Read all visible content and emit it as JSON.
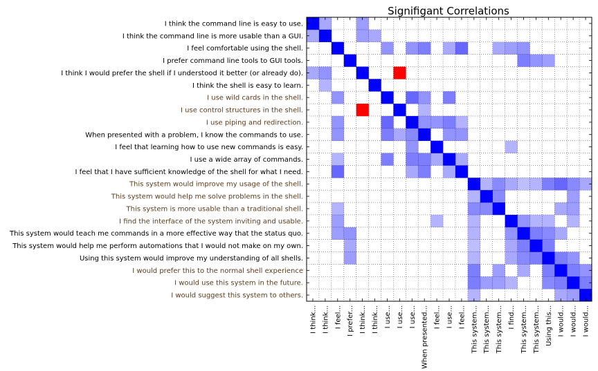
{
  "chart_data": {
    "type": "heatmap",
    "title": "Signifigant Correlations",
    "colors": {
      "positive": "#0000ff",
      "negative": "#ff0000",
      "label_default": "#000000",
      "label_highlight": "#5c3d1e"
    },
    "grid": true,
    "row_labels": [
      "I think the command line is easy to use.",
      "I think the command line is more usable than a GUI.",
      "I feel comfortable using the shell.",
      "I prefer command line tools to GUI tools.",
      "I think I would prefer the shell if I understood it better (or already do).",
      "I think the shell is easy to learn.",
      "I use wild cards in the shell.",
      "I use control structures in the shell.",
      "I use piping and redirection.",
      "When presented with a problem, I know the commands to use.",
      "I feel that learning how to use new commands is easy.",
      "I use a wide array of commands.",
      "I feel that I have sufficient knowledge of the shell for what I need.",
      "This system would improve my usage of the shell.",
      "This system would help me solve problems in the shell.",
      "This system is more usable than a traditional shell.",
      "I find the interface of the system inviting and usable.",
      "This system would teach me commands in a more effective way that  the status quo.",
      "This system would help me perform automations that I would not make on my own.",
      "Using this system would improve my understanding of all shells.",
      "I would prefer this to the normal shell experience",
      "I would use this system in the future.",
      "I would suggest this system to others."
    ],
    "highlighted_rows": [
      6,
      7,
      8,
      13,
      14,
      15,
      16,
      20,
      21,
      22
    ],
    "col_labels": [
      "I think...",
      "I think...",
      "I feel...",
      "I prefer...",
      "I think...",
      "I think...",
      "I use...",
      "I use...",
      "I use...",
      "When presented...",
      "I feel...",
      "I use...",
      "I feel...",
      "This system...",
      "This system...",
      "This system...",
      "I find...",
      "This system...",
      "This system...",
      "Using this...",
      "I would...",
      "I would...",
      "I would..."
    ],
    "cells": [
      [
        0,
        0,
        1
      ],
      [
        0,
        1,
        0.4
      ],
      [
        0,
        4,
        0.45
      ],
      [
        1,
        0,
        0.4
      ],
      [
        1,
        1,
        1
      ],
      [
        1,
        4,
        0.45
      ],
      [
        1,
        5,
        0.4
      ],
      [
        2,
        2,
        1
      ],
      [
        2,
        6,
        0.5
      ],
      [
        2,
        8,
        0.5
      ],
      [
        2,
        9,
        0.6
      ],
      [
        2,
        11,
        0.4
      ],
      [
        2,
        12,
        0.7
      ],
      [
        2,
        15,
        0.4
      ],
      [
        2,
        16,
        0.45
      ],
      [
        2,
        17,
        0.5
      ],
      [
        3,
        3,
        1
      ],
      [
        3,
        17,
        0.6
      ],
      [
        3,
        18,
        0.5
      ],
      [
        3,
        19,
        0.45
      ],
      [
        4,
        0,
        0.4
      ],
      [
        4,
        1,
        0.5
      ],
      [
        4,
        4,
        1
      ],
      [
        4,
        7,
        -1
      ],
      [
        5,
        1,
        0.35
      ],
      [
        5,
        5,
        1
      ],
      [
        6,
        2,
        0.5
      ],
      [
        6,
        6,
        1
      ],
      [
        6,
        8,
        0.7
      ],
      [
        6,
        9,
        0.5
      ],
      [
        6,
        11,
        0.6
      ],
      [
        7,
        4,
        -1
      ],
      [
        7,
        7,
        1
      ],
      [
        7,
        9,
        0.35
      ],
      [
        8,
        2,
        0.5
      ],
      [
        8,
        6,
        0.7
      ],
      [
        8,
        8,
        1
      ],
      [
        8,
        9,
        0.5
      ],
      [
        8,
        10,
        0.5
      ],
      [
        8,
        11,
        0.6
      ],
      [
        8,
        12,
        0.35
      ],
      [
        9,
        2,
        0.5
      ],
      [
        9,
        6,
        0.6
      ],
      [
        9,
        7,
        0.4
      ],
      [
        9,
        8,
        0.55
      ],
      [
        9,
        9,
        1
      ],
      [
        9,
        11,
        0.5
      ],
      [
        9,
        12,
        0.5
      ],
      [
        10,
        8,
        0.5
      ],
      [
        10,
        10,
        1
      ],
      [
        10,
        16,
        0.35
      ],
      [
        11,
        2,
        0.35
      ],
      [
        11,
        6,
        0.6
      ],
      [
        11,
        8,
        0.6
      ],
      [
        11,
        9,
        0.6
      ],
      [
        11,
        10,
        0.4
      ],
      [
        11,
        11,
        1
      ],
      [
        11,
        12,
        0.4
      ],
      [
        12,
        2,
        0.7
      ],
      [
        12,
        8,
        0.4
      ],
      [
        12,
        9,
        0.6
      ],
      [
        12,
        11,
        0.4
      ],
      [
        12,
        12,
        1
      ],
      [
        13,
        13,
        1
      ],
      [
        13,
        14,
        0.35
      ],
      [
        13,
        15,
        0.55
      ],
      [
        13,
        16,
        0.4
      ],
      [
        13,
        17,
        0.3
      ],
      [
        13,
        18,
        0.35
      ],
      [
        13,
        19,
        0.6
      ],
      [
        13,
        20,
        0.7
      ],
      [
        13,
        21,
        0.55
      ],
      [
        13,
        22,
        0.4
      ],
      [
        14,
        13,
        0.35
      ],
      [
        14,
        14,
        1
      ],
      [
        14,
        15,
        0.55
      ],
      [
        14,
        21,
        0.45
      ],
      [
        15,
        2,
        0.35
      ],
      [
        15,
        13,
        0.55
      ],
      [
        15,
        14,
        0.55
      ],
      [
        15,
        15,
        1
      ],
      [
        15,
        20,
        0.4
      ],
      [
        15,
        21,
        0.45
      ],
      [
        16,
        2,
        0.45
      ],
      [
        16,
        10,
        0.35
      ],
      [
        16,
        13,
        0.35
      ],
      [
        16,
        16,
        1
      ],
      [
        16,
        17,
        0.5
      ],
      [
        16,
        18,
        0.35
      ],
      [
        16,
        19,
        0.35
      ],
      [
        16,
        21,
        0.35
      ],
      [
        17,
        2,
        0.45
      ],
      [
        17,
        3,
        0.5
      ],
      [
        17,
        13,
        0.35
      ],
      [
        17,
        16,
        0.5
      ],
      [
        17,
        17,
        1
      ],
      [
        17,
        18,
        0.6
      ],
      [
        17,
        19,
        0.55
      ],
      [
        17,
        20,
        0.4
      ],
      [
        18,
        3,
        0.4
      ],
      [
        18,
        13,
        0.3
      ],
      [
        18,
        16,
        0.4
      ],
      [
        18,
        17,
        0.6
      ],
      [
        18,
        18,
        1
      ],
      [
        18,
        19,
        0.6
      ],
      [
        19,
        3,
        0.45
      ],
      [
        19,
        13,
        0.35
      ],
      [
        19,
        16,
        0.4
      ],
      [
        19,
        17,
        0.55
      ],
      [
        19,
        18,
        0.6
      ],
      [
        19,
        19,
        1
      ],
      [
        19,
        20,
        0.6
      ],
      [
        19,
        21,
        0.5
      ],
      [
        20,
        13,
        0.6
      ],
      [
        20,
        15,
        0.45
      ],
      [
        20,
        17,
        0.4
      ],
      [
        20,
        19,
        0.6
      ],
      [
        20,
        20,
        1
      ],
      [
        20,
        21,
        0.6
      ],
      [
        20,
        22,
        0.5
      ],
      [
        21,
        13,
        0.6
      ],
      [
        21,
        14,
        0.45
      ],
      [
        21,
        15,
        0.45
      ],
      [
        21,
        16,
        0.35
      ],
      [
        21,
        19,
        0.55
      ],
      [
        21,
        20,
        0.6
      ],
      [
        21,
        21,
        1
      ],
      [
        21,
        22,
        0.6
      ],
      [
        22,
        13,
        0.35
      ],
      [
        22,
        20,
        0.4
      ],
      [
        22,
        21,
        0.45
      ],
      [
        22,
        22,
        1
      ]
    ]
  }
}
